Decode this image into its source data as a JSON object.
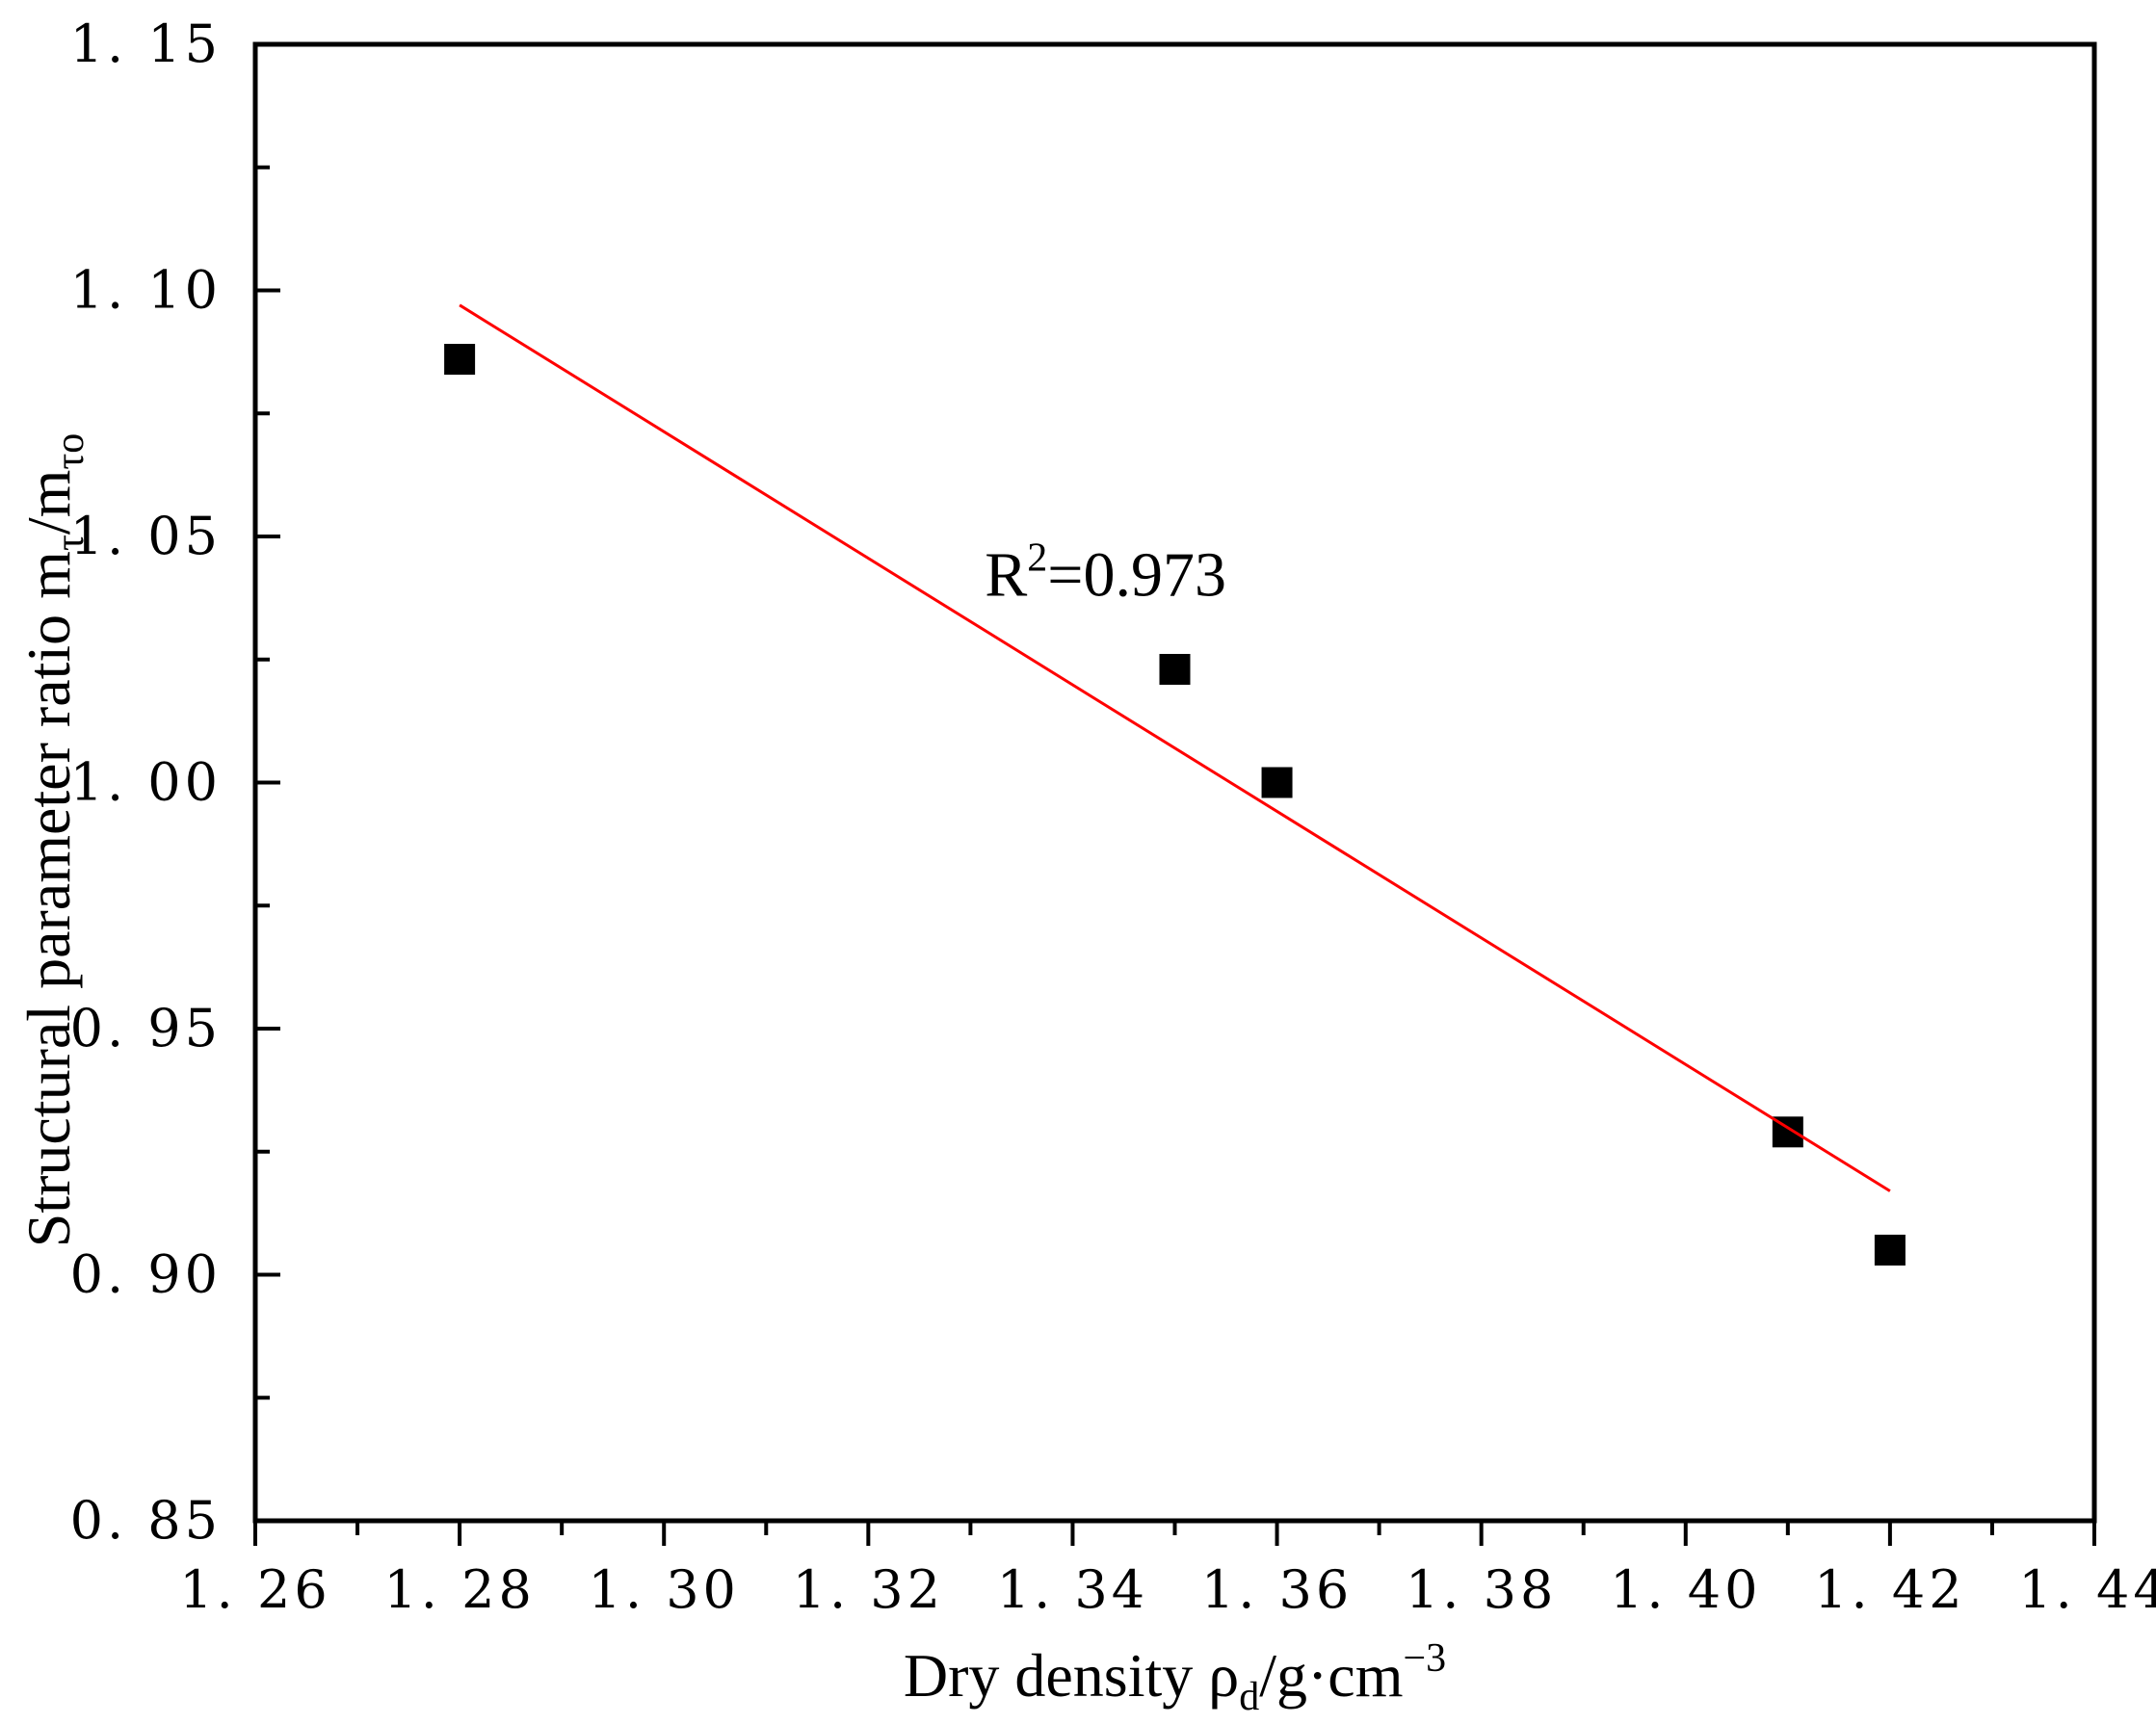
{
  "chart_data": {
    "type": "scatter",
    "xlabel": {
      "main": "Dry density  ρ",
      "sub": "d",
      "tail": "/g·cm",
      "sup": "−3"
    },
    "ylabel": {
      "main": "Structural parameter ratio m",
      "sub1": "τ",
      "mid": "/m",
      "sub2": "τo"
    },
    "xlim": [
      1.26,
      1.44
    ],
    "ylim": [
      0.85,
      1.15
    ],
    "x_ticks": [
      "1. 26",
      "1. 28",
      "1. 30",
      "1. 32",
      "1. 34",
      "1. 36",
      "1. 38",
      "1. 40",
      "1. 42",
      "1. 44"
    ],
    "y_ticks": [
      "0. 85",
      "0. 90",
      "0. 95",
      "1. 00",
      "1. 05",
      "1. 10",
      "1. 15"
    ],
    "x_tick_values": [
      1.26,
      1.28,
      1.3,
      1.32,
      1.34,
      1.36,
      1.38,
      1.4,
      1.42,
      1.44
    ],
    "y_tick_values": [
      0.85,
      0.9,
      0.95,
      1.0,
      1.05,
      1.1,
      1.15
    ],
    "grid": false,
    "series": [
      {
        "marker": "square",
        "color": "#000000",
        "points": [
          {
            "x": 1.28,
            "y": 1.086
          },
          {
            "x": 1.35,
            "y": 1.023
          },
          {
            "x": 1.36,
            "y": 1.0
          },
          {
            "x": 1.41,
            "y": 0.929
          },
          {
            "x": 1.42,
            "y": 0.905
          }
        ]
      },
      {
        "type": "line",
        "color": "#ff0000",
        "points": [
          {
            "x": 1.28,
            "y": 1.097
          },
          {
            "x": 1.42,
            "y": 0.917
          }
        ]
      }
    ],
    "annotation": {
      "prefix": "R",
      "sup": "2",
      "value": "=0.973"
    }
  }
}
